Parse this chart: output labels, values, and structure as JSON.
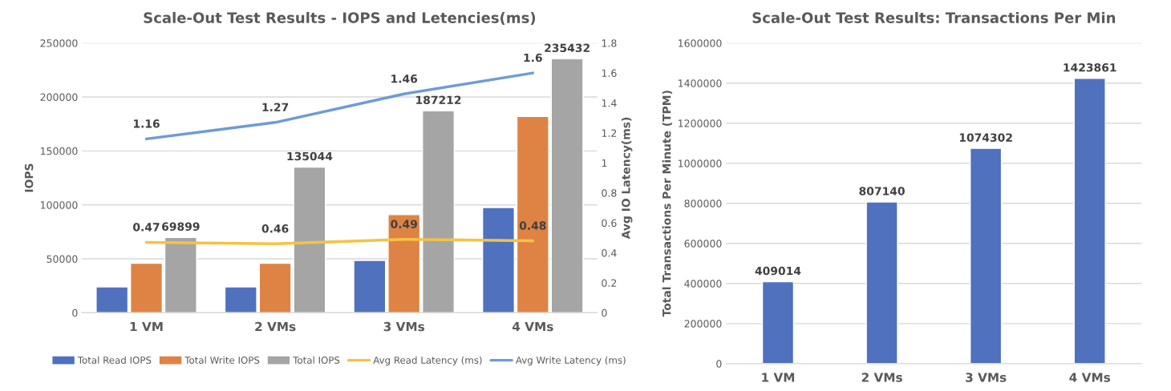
{
  "chart_data": [
    {
      "type": "bar",
      "title": "Scale-Out Test Results - IOPS and Letencies(ms)",
      "ylabel": "IOPS",
      "y2label": "Avg IO Latency(ms)",
      "categories": [
        "1 VM",
        "2 VMs",
        "3 VMs",
        "4 VMs"
      ],
      "series": [
        {
          "name": "Total Read IOPS",
          "color": "#4f71be",
          "values": [
            24000,
            24000,
            48500,
            97500
          ]
        },
        {
          "name": "Total Write IOPS",
          "color": "#de8344",
          "values": [
            46000,
            46000,
            91000,
            182000
          ]
        },
        {
          "name": "Total IOPS",
          "color": "#a5a5a5",
          "values": [
            69899,
            135044,
            187212,
            235432
          ],
          "value_labels": [
            "69899",
            "135044",
            "187212",
            "235432"
          ]
        },
        {
          "name": "Avg Read Latency (ms)",
          "type": "line",
          "axis": "y2",
          "color": "#f6c243",
          "values": [
            0.47,
            0.46,
            0.49,
            0.48
          ],
          "value_labels": [
            "0.47",
            "0.46",
            "0.49",
            "0.48"
          ]
        },
        {
          "name": "Avg Write Latency (ms)",
          "type": "line",
          "axis": "y2",
          "color": "#6e9bd6",
          "values": [
            1.16,
            1.27,
            1.46,
            1.6
          ],
          "value_labels": [
            "1.16",
            "1.27",
            "1.46",
            "1.6"
          ]
        }
      ],
      "ylim": [
        0,
        250000
      ],
      "yticks": [
        0,
        50000,
        100000,
        150000,
        200000,
        250000
      ],
      "y2lim": [
        0,
        1.8
      ],
      "y2ticks": [
        0,
        0.2,
        0.4,
        0.6,
        0.8,
        1,
        1.2,
        1.4,
        1.6,
        1.8
      ],
      "grid": "y",
      "legend": "bottom"
    },
    {
      "type": "bar",
      "title": "Scale-Out Test Results: Transactions Per Min",
      "ylabel": "Total Transactions Per Minute (TPM)",
      "categories": [
        "1 VM",
        "2 VMs",
        "3 VMs",
        "4 VMs"
      ],
      "values": [
        409014,
        807140,
        1074302,
        1423861
      ],
      "color": "#4f71be",
      "data_labels": true,
      "ylim": [
        0,
        1600000
      ],
      "yticks": [
        0,
        200000,
        400000,
        600000,
        800000,
        1000000,
        1200000,
        1400000,
        1600000
      ],
      "grid": "y"
    }
  ]
}
